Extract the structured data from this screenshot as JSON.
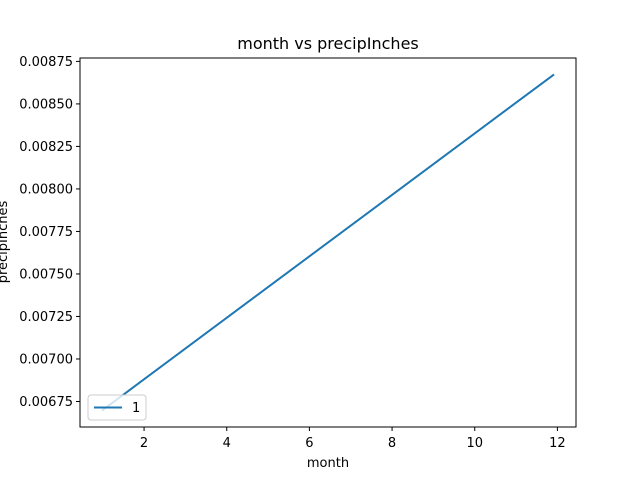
{
  "chart_data": {
    "type": "line",
    "title": "month vs precipInches",
    "xlabel": "month",
    "ylabel": "precipInches",
    "xlim": [
      0.45,
      12.45
    ],
    "ylim": [
      0.0066,
      0.00877
    ],
    "xticks": [
      2,
      4,
      6,
      8,
      10,
      12
    ],
    "xtick_labels": [
      "2",
      "4",
      "6",
      "8",
      "10",
      "12"
    ],
    "yticks": [
      0.00675,
      0.007,
      0.00725,
      0.0075,
      0.00775,
      0.008,
      0.00825,
      0.0085,
      0.00875
    ],
    "ytick_labels": [
      "0.00675",
      "0.00700",
      "0.00725",
      "0.00750",
      "0.00775",
      "0.00800",
      "0.00825",
      "0.00850",
      "0.00875"
    ],
    "grid": false,
    "legend_position": "lower-left",
    "series": [
      {
        "name": "1",
        "color": "#1f77b4",
        "x": [
          1,
          11.9
        ],
        "y": [
          0.0067,
          0.00867
        ]
      }
    ]
  }
}
